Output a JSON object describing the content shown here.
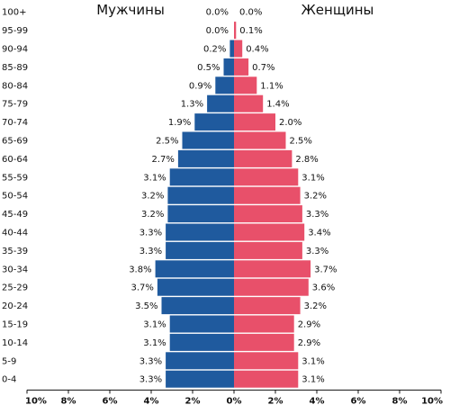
{
  "chart_data": {
    "type": "bar",
    "orientation": "horizontal-population-pyramid",
    "categories": [
      "0-4",
      "5-9",
      "10-14",
      "15-19",
      "20-24",
      "25-29",
      "30-34",
      "35-39",
      "40-44",
      "45-49",
      "50-54",
      "55-59",
      "60-64",
      "65-69",
      "70-74",
      "75-79",
      "80-84",
      "85-89",
      "90-94",
      "95-99",
      "100+"
    ],
    "series": [
      {
        "name": "Мужчины",
        "color": "#1f5a9e",
        "values": [
          3.3,
          3.3,
          3.1,
          3.1,
          3.5,
          3.7,
          3.8,
          3.3,
          3.3,
          3.2,
          3.2,
          3.1,
          2.7,
          2.5,
          1.9,
          1.3,
          0.9,
          0.5,
          0.2,
          0.0,
          0.0
        ],
        "labels": [
          "3.3%",
          "3.3%",
          "3.1%",
          "3.1%",
          "3.5%",
          "3.7%",
          "3.8%",
          "3.3%",
          "3.3%",
          "3.2%",
          "3.2%",
          "3.1%",
          "2.7%",
          "2.5%",
          "1.9%",
          "1.3%",
          "0.9%",
          "0.5%",
          "0.2%",
          "0.0%",
          "0.0%"
        ]
      },
      {
        "name": "Женщины",
        "color": "#e8506a",
        "values": [
          3.1,
          3.1,
          2.9,
          2.9,
          3.2,
          3.6,
          3.7,
          3.3,
          3.4,
          3.3,
          3.2,
          3.1,
          2.8,
          2.5,
          2.0,
          1.4,
          1.1,
          0.7,
          0.4,
          0.1,
          0.0
        ],
        "labels": [
          "3.1%",
          "3.1%",
          "2.9%",
          "2.9%",
          "3.2%",
          "3.6%",
          "3.7%",
          "3.3%",
          "3.4%",
          "3.3%",
          "3.2%",
          "3.1%",
          "2.8%",
          "2.5%",
          "2.0%",
          "1.4%",
          "1.1%",
          "0.7%",
          "0.4%",
          "0.1%",
          "0.0%"
        ]
      }
    ],
    "xlim": [
      -10,
      10
    ],
    "xticks": [
      -10,
      -8,
      -6,
      -4,
      -2,
      0,
      2,
      4,
      6,
      8,
      10
    ],
    "xtick_labels": [
      "10%",
      "8%",
      "6%",
      "4%",
      "2%",
      "0%",
      "2%",
      "4%",
      "6%",
      "8%",
      "10%"
    ],
    "title": "",
    "xlabel": "",
    "ylabel": "",
    "grid": false
  }
}
